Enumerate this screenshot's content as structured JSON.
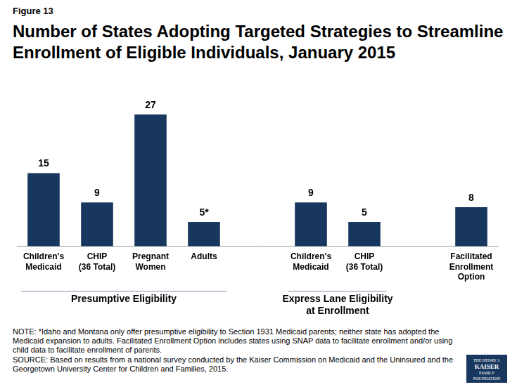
{
  "chart_data": {
    "type": "bar",
    "figure_label": "Figure 13",
    "title": "Number of States Adopting Targeted Strategies to Streamline Enrollment of Eligible Individuals, January 2015",
    "categories": [
      [
        "Children's",
        "Medicaid"
      ],
      [
        "CHIP",
        "(36 Total)"
      ],
      [
        "Pregnant",
        "Women"
      ],
      "Adults",
      null,
      [
        "Children's",
        "Medicaid"
      ],
      [
        "CHIP",
        "(36 Total)"
      ],
      null,
      [
        "Facilitated",
        "Enrollment",
        "Option"
      ]
    ],
    "values": [
      15,
      9,
      27,
      5,
      null,
      9,
      5,
      null,
      8
    ],
    "value_labels": [
      "15",
      "9",
      "27",
      "5*",
      null,
      "9",
      "5",
      null,
      "8"
    ],
    "color": "#17375E",
    "ylim": [
      0,
      30
    ],
    "grid": false,
    "data_labels": true,
    "tick_labels": "x",
    "groups": [
      {
        "label": [
          "Presumptive Eligibility"
        ],
        "first": 0,
        "last": 3
      },
      {
        "label": [
          "Express Lane Eligibility",
          "at Enrollment"
        ],
        "first": 5,
        "last": 6
      }
    ],
    "note": "NOTE: *Idaho and Montana only offer presumptive eligibility to Section 1931 Medicaid parents; neither state has adopted the Medicaid expansion to adults. Facilitated Enrollment Option includes states using SNAP data to facilitate enrollment and/or using child data to facilitate enrollment of parents.",
    "source": "SOURCE: Based on results from a national survey conducted by the Kaiser Commission on Medicaid and the Uninsured and the Georgetown University Center for Children and Families, 2015.",
    "logo": [
      "THE HENRY J.",
      "KAISER",
      "FAMILY",
      "FOUNDATION"
    ]
  }
}
